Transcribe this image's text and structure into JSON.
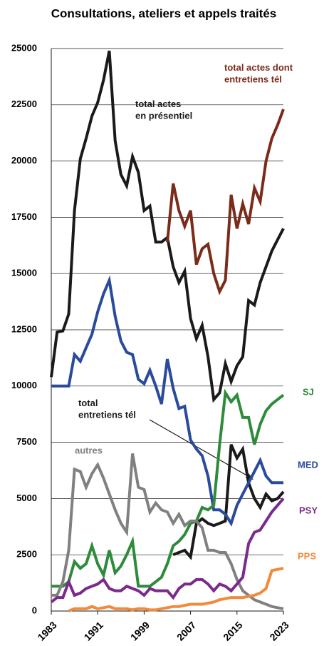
{
  "chart_data": {
    "type": "line",
    "title": "Consultations, ateliers et appels traités",
    "x": [
      1983,
      1984,
      1985,
      1986,
      1987,
      1988,
      1989,
      1990,
      1991,
      1992,
      1993,
      1994,
      1995,
      1996,
      1997,
      1998,
      1999,
      2000,
      2001,
      2002,
      2003,
      2004,
      2005,
      2006,
      2007,
      2008,
      2009,
      2010,
      2011,
      2012,
      2013,
      2014,
      2015,
      2016,
      2017,
      2018,
      2019,
      2020,
      2021,
      2022,
      2023
    ],
    "xlim": [
      1983,
      2023
    ],
    "xticks": [
      1983,
      1991,
      1999,
      2007,
      2015,
      2023
    ],
    "ylim": [
      0,
      25000
    ],
    "yticks": [
      0,
      2500,
      5000,
      7500,
      10000,
      12500,
      15000,
      17500,
      20000,
      22500,
      25000
    ],
    "grid": true,
    "series": [
      {
        "name": "total actes\nen présentiel",
        "color": "#1a1a1a",
        "values": [
          10400,
          12400,
          12450,
          13200,
          17800,
          20100,
          21000,
          22000,
          22600,
          23600,
          24900,
          20900,
          19400,
          18900,
          20200,
          19500,
          17800,
          18000,
          16400,
          16400,
          16600,
          15300,
          14600,
          15100,
          13000,
          12100,
          12700,
          11300,
          9400,
          9700,
          11000,
          10200,
          10900,
          11300,
          13800,
          13600,
          14600,
          15300,
          16000,
          16500,
          17000
        ]
      },
      {
        "name": "total actes dont\nentretiens tél",
        "color": "#7b2b1a",
        "values": [
          null,
          null,
          null,
          null,
          null,
          null,
          null,
          null,
          null,
          null,
          null,
          null,
          null,
          null,
          null,
          null,
          null,
          null,
          null,
          null,
          16400,
          19000,
          17800,
          17100,
          17800,
          15400,
          16100,
          16300,
          15000,
          14200,
          14700,
          18500,
          17000,
          18100,
          17200,
          18800,
          18200,
          20000,
          21000,
          21600,
          22300
        ]
      },
      {
        "name": "total\nentretiens tél",
        "color": "#1a1a1a",
        "values": [
          null,
          null,
          null,
          null,
          null,
          null,
          null,
          null,
          null,
          null,
          null,
          null,
          null,
          null,
          null,
          null,
          null,
          null,
          null,
          null,
          null,
          2500,
          2600,
          2700,
          2400,
          3900,
          4100,
          3900,
          3800,
          3900,
          4000,
          7400,
          6800,
          7200,
          5700,
          5000,
          4600,
          5200,
          4900,
          5000,
          5300
        ]
      },
      {
        "name": "MED",
        "color": "#2a4a9c",
        "values": [
          10000,
          10000,
          10000,
          10000,
          11400,
          11100,
          11700,
          12300,
          13300,
          14100,
          14700,
          13100,
          12000,
          11500,
          11400,
          10300,
          10100,
          10700,
          10000,
          9200,
          11200,
          9900,
          9000,
          9100,
          7600,
          7200,
          6900,
          6000,
          4500,
          4500,
          4300,
          3900,
          4700,
          5200,
          5700,
          6200,
          6700,
          6000,
          5700,
          5700,
          5700
        ]
      },
      {
        "name": "SJ",
        "color": "#2e8b3a",
        "values": [
          1100,
          1100,
          1100,
          1300,
          2200,
          1900,
          2100,
          2900,
          2100,
          1600,
          2700,
          1700,
          2000,
          2500,
          3100,
          1100,
          1100,
          1100,
          1300,
          1500,
          2100,
          2900,
          3100,
          3400,
          3900,
          4000,
          4600,
          4500,
          4700,
          7400,
          9700,
          9300,
          9600,
          8600,
          8600,
          7400,
          8300,
          8900,
          9200,
          9400,
          9600
        ]
      },
      {
        "name": "autres",
        "color": "#808080",
        "values": [
          700,
          700,
          1300,
          2700,
          6300,
          6200,
          5500,
          6100,
          6500,
          5900,
          5200,
          4500,
          3900,
          3500,
          7000,
          5500,
          5400,
          4400,
          4800,
          4500,
          4400,
          3900,
          4300,
          3800,
          4000,
          4000,
          3700,
          2700,
          2700,
          2600,
          2600,
          2100,
          1400,
          900,
          700,
          500,
          400,
          300,
          200,
          150,
          100
        ]
      },
      {
        "name": "PSY",
        "color": "#7a2a8a",
        "values": [
          400,
          600,
          600,
          1300,
          700,
          800,
          1000,
          1100,
          1200,
          1400,
          1000,
          900,
          900,
          1100,
          1000,
          900,
          700,
          1000,
          900,
          900,
          900,
          600,
          1000,
          1200,
          1200,
          1400,
          1400,
          1200,
          900,
          1200,
          1100,
          900,
          1200,
          1500,
          3000,
          3500,
          3600,
          4000,
          4400,
          4700,
          5000
        ]
      },
      {
        "name": "PPS",
        "color": "#f08a3c",
        "values": [
          null,
          null,
          null,
          0,
          100,
          100,
          100,
          200,
          100,
          150,
          200,
          100,
          100,
          100,
          50,
          100,
          100,
          50,
          50,
          100,
          150,
          200,
          200,
          250,
          300,
          300,
          300,
          350,
          400,
          500,
          550,
          600,
          600,
          600,
          650,
          700,
          800,
          1000,
          1800,
          1850,
          1900
        ]
      }
    ]
  }
}
